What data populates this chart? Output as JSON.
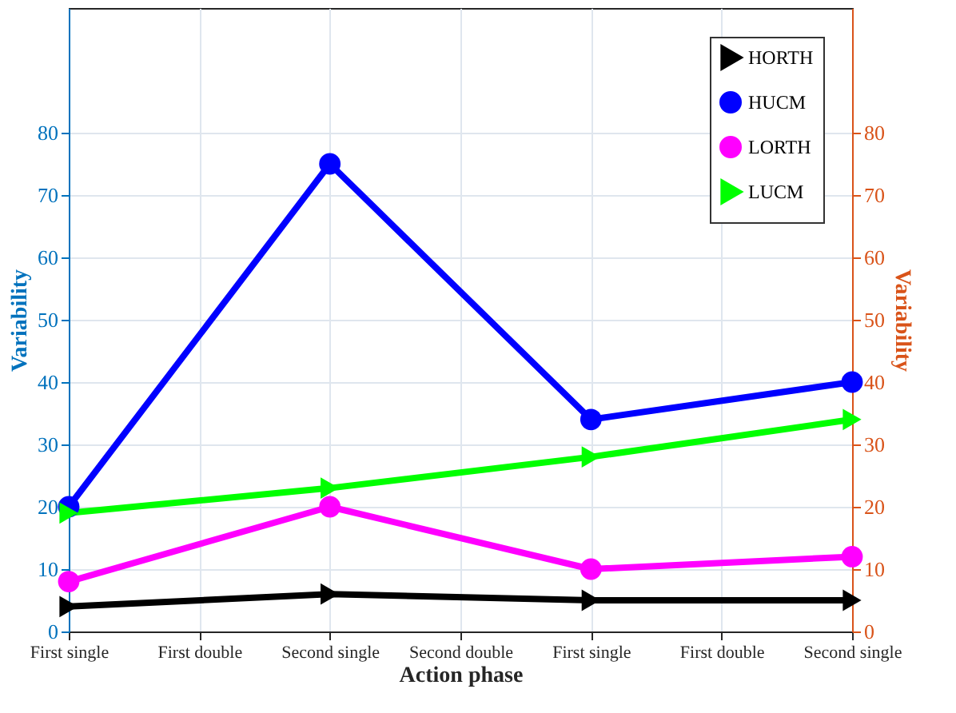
{
  "chart_data": {
    "type": "line",
    "xlabel": "Action phase",
    "ylabel": "Variability",
    "y2label": "Variability",
    "categories": [
      "First single",
      "First double",
      "Second single",
      "Second double",
      "First single",
      "First double",
      "Second single"
    ],
    "ylim": [
      0,
      100
    ],
    "yticks": [
      0,
      10,
      20,
      30,
      40,
      50,
      60,
      70,
      80
    ],
    "y2lim": [
      0,
      100
    ],
    "y2ticks": [
      0,
      10,
      20,
      30,
      40,
      50,
      60,
      70,
      80
    ],
    "grid": true,
    "legend": "top right",
    "line_style": "solid",
    "series": [
      {
        "name": "HORTH",
        "color": "#000000",
        "marker": "triangle",
        "values": [
          4,
          null,
          6,
          null,
          5,
          null,
          5
        ]
      },
      {
        "name": "HUCM",
        "color": "#0000ff",
        "marker": "circle",
        "values": [
          20,
          null,
          75,
          null,
          34,
          null,
          40
        ]
      },
      {
        "name": "LORTH",
        "color": "#ff00ff",
        "marker": "circle",
        "values": [
          8,
          null,
          20,
          null,
          10,
          null,
          12
        ]
      },
      {
        "name": "LUCM",
        "color": "#00ff00",
        "marker": "triangle",
        "values": [
          19,
          null,
          23,
          null,
          28,
          null,
          34
        ]
      }
    ]
  }
}
